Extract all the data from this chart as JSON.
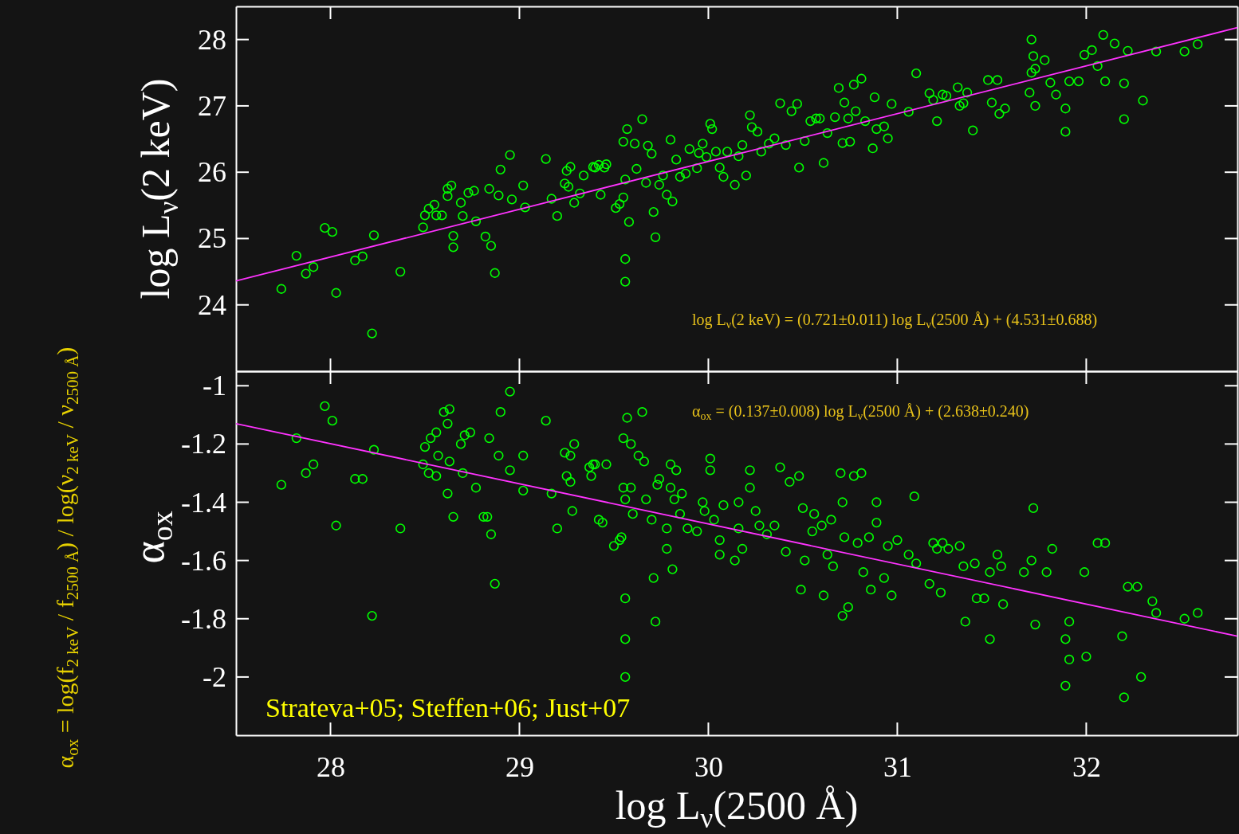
{
  "chart_data": [
    {
      "type": "scatter",
      "ylabel": "log L$_{ν}$(2 keV)",
      "xlim": [
        27.5,
        32.8
      ],
      "ylim": [
        23,
        28.5
      ],
      "xticks": [
        28,
        29,
        30,
        31,
        32
      ],
      "yticks": [
        24,
        25,
        26,
        27,
        28
      ],
      "tick_labels": "y",
      "marker": "circle",
      "grid": false,
      "annotations": [
        "log L$_{ν}$(2 keV) = (0.721±0.011) log L$_{ν}$(2500 Å) + (4.531±0.688)"
      ],
      "series": [
        {
          "type": "scatter",
          "color": "#00ff00",
          "x": [
            27.74,
            27.82,
            27.87,
            27.91,
            27.97,
            28.01,
            28.03,
            28.13,
            28.17,
            28.22,
            28.23,
            28.37,
            28.49,
            28.5,
            28.52,
            28.55,
            28.56,
            28.59,
            28.62,
            28.62,
            28.64,
            28.65,
            28.65,
            28.69,
            28.7,
            28.73,
            28.76,
            28.77,
            28.82,
            28.84,
            28.85,
            28.87,
            28.89,
            28.9,
            28.95,
            28.96,
            29.02,
            29.03,
            29.14,
            29.17,
            29.2,
            29.24,
            29.25,
            29.26,
            29.27,
            29.29,
            29.32,
            29.34,
            29.39,
            29.4,
            29.42,
            29.43,
            29.45,
            29.46,
            29.51,
            29.53,
            29.55,
            29.56,
            29.56,
            29.56,
            29.58,
            29.57,
            29.55,
            29.61,
            29.62,
            29.65,
            29.67,
            29.68,
            29.7,
            29.71,
            29.72,
            29.74,
            29.76,
            29.78,
            29.8,
            29.81,
            29.83,
            29.85,
            29.88,
            29.9,
            29.94,
            29.95,
            29.97,
            29.99,
            30.01,
            30.02,
            30.04,
            30.06,
            30.08,
            30.1,
            30.14,
            30.16,
            30.18,
            30.2,
            30.22,
            30.23,
            30.26,
            30.28,
            30.32,
            30.35,
            30.38,
            30.41,
            30.44,
            30.47,
            30.48,
            30.51,
            30.54,
            30.57,
            30.59,
            30.61,
            30.63,
            30.67,
            30.69,
            30.71,
            30.72,
            30.74,
            30.75,
            30.77,
            30.78,
            30.81,
            30.83,
            30.87,
            30.88,
            30.89,
            30.93,
            30.95,
            30.97,
            31.1,
            31.06,
            31.17,
            31.19,
            31.21,
            31.24,
            31.26,
            31.32,
            31.33,
            31.35,
            31.37,
            31.4,
            31.48,
            31.53,
            31.5,
            31.54,
            31.57,
            31.7,
            31.71,
            31.72,
            31.73,
            31.73,
            31.78,
            31.81,
            31.84,
            31.89,
            31.91,
            31.96,
            31.89,
            31.99,
            32.03,
            32.06,
            32.1,
            32.09,
            32.15,
            32.2,
            32.2,
            32.22,
            32.3,
            32.37,
            32.52,
            32.59,
            31.71
          ],
          "values": [
            24.24,
            24.74,
            24.47,
            24.57,
            25.16,
            25.1,
            24.18,
            24.67,
            24.73,
            23.57,
            25.05,
            24.5,
            25.17,
            25.35,
            25.45,
            25.51,
            25.35,
            25.35,
            25.75,
            25.64,
            25.8,
            25.04,
            24.87,
            25.54,
            25.34,
            25.69,
            25.72,
            25.26,
            25.03,
            25.75,
            24.89,
            24.48,
            25.65,
            26.04,
            26.26,
            25.59,
            25.8,
            25.47,
            26.2,
            25.6,
            25.34,
            25.83,
            26.02,
            25.78,
            26.08,
            25.54,
            25.68,
            25.95,
            26.08,
            26.07,
            26.11,
            25.66,
            26.07,
            26.12,
            25.46,
            25.52,
            25.62,
            25.89,
            24.69,
            24.35,
            25.25,
            26.65,
            26.46,
            26.43,
            26.05,
            26.8,
            25.84,
            26.4,
            26.28,
            25.4,
            25.02,
            25.81,
            25.95,
            25.66,
            26.49,
            25.56,
            26.19,
            25.93,
            25.98,
            26.35,
            26.06,
            26.29,
            26.43,
            26.23,
            26.73,
            26.65,
            26.31,
            26.07,
            25.93,
            26.31,
            25.81,
            26.24,
            26.41,
            25.95,
            26.86,
            26.68,
            26.61,
            26.31,
            26.43,
            26.51,
            27.04,
            26.41,
            26.92,
            27.03,
            26.07,
            26.47,
            26.77,
            26.81,
            26.81,
            26.14,
            26.59,
            26.83,
            27.27,
            26.44,
            27.05,
            26.81,
            26.46,
            27.32,
            26.92,
            27.41,
            26.77,
            26.36,
            27.13,
            26.65,
            26.69,
            26.51,
            27.03,
            27.49,
            26.91,
            27.19,
            27.09,
            26.77,
            27.17,
            27.15,
            27.28,
            27.0,
            27.04,
            27.2,
            26.63,
            27.39,
            27.39,
            27.05,
            26.88,
            26.96,
            27.2,
            27.5,
            27.75,
            27.56,
            27.0,
            27.69,
            27.35,
            27.17,
            26.96,
            27.37,
            27.37,
            26.61,
            27.77,
            27.84,
            27.6,
            27.37,
            28.07,
            27.94,
            27.34,
            26.8,
            27.83,
            27.08,
            27.82,
            27.82,
            27.93,
            28.0
          ]
        },
        {
          "type": "line",
          "color": "#ff33ff",
          "marker": "none",
          "x": [
            27.5,
            32.8
          ],
          "values": [
            24.36,
            28.18
          ]
        }
      ]
    },
    {
      "type": "scatter",
      "xlabel": "log L$_{ν}$(2500 Å)",
      "ylabel": "α$_{ox}$",
      "xlim": [
        27.5,
        32.8
      ],
      "ylim": [
        -2.2,
        -0.95
      ],
      "xticks": [
        28,
        29,
        30,
        31,
        32
      ],
      "yticks": [
        -1,
        -1.2,
        -1.4,
        -1.6,
        -1.8,
        -2
      ],
      "marker": "circle",
      "grid": false,
      "annotations": [
        "α$_{ox}$ = (0.137±0.008) log L$_{ν}$(2500 Å) + (2.638±0.240)",
        "Strateva+05; Steffen+06; Just+07",
        "α$_{ox}$ = log(f$_{2 keV}$ / f$_{2500 Å}$) / log(ν$_{2 keV}$ / ν$_{2500 Å}$)"
      ],
      "series": [
        {
          "type": "scatter",
          "color": "#00ff00",
          "x": [
            27.74,
            27.82,
            27.87,
            27.91,
            27.97,
            28.01,
            28.03,
            28.13,
            28.17,
            28.22,
            28.23,
            28.37,
            28.49,
            28.5,
            28.52,
            28.53,
            28.56,
            28.56,
            28.57,
            28.6,
            28.62,
            28.63,
            28.63,
            28.62,
            28.65,
            28.69,
            28.71,
            28.74,
            28.7,
            28.77,
            28.81,
            28.83,
            28.84,
            28.85,
            28.87,
            28.89,
            28.9,
            28.95,
            28.95,
            29.02,
            29.02,
            29.14,
            29.17,
            29.2,
            29.24,
            29.25,
            29.27,
            29.27,
            29.28,
            29.29,
            29.37,
            29.38,
            29.39,
            29.4,
            29.42,
            29.44,
            29.46,
            29.5,
            29.53,
            29.54,
            29.56,
            29.56,
            29.56,
            29.55,
            29.57,
            29.55,
            29.56,
            29.59,
            29.59,
            29.6,
            29.63,
            29.65,
            29.66,
            29.67,
            29.7,
            29.71,
            29.72,
            29.73,
            29.74,
            29.78,
            29.78,
            29.8,
            29.8,
            29.81,
            29.83,
            29.82,
            29.85,
            29.86,
            29.89,
            29.94,
            29.97,
            29.98,
            30.01,
            30.01,
            30.03,
            30.06,
            30.06,
            30.08,
            30.14,
            30.16,
            30.16,
            30.18,
            30.22,
            30.22,
            30.25,
            30.27,
            30.31,
            30.35,
            30.38,
            30.41,
            30.43,
            30.48,
            30.49,
            30.5,
            30.51,
            30.55,
            30.56,
            30.6,
            30.61,
            30.63,
            30.65,
            30.66,
            30.7,
            30.71,
            30.72,
            30.71,
            30.74,
            30.77,
            30.79,
            30.81,
            30.82,
            30.85,
            30.86,
            30.89,
            30.89,
            30.95,
            30.93,
            30.97,
            31.0,
            31.09,
            31.1,
            31.06,
            31.17,
            31.19,
            31.21,
            31.23,
            31.24,
            31.27,
            31.33,
            31.35,
            31.36,
            31.41,
            31.42,
            31.46,
            31.49,
            31.49,
            31.53,
            31.55,
            31.56,
            31.72,
            31.71,
            31.73,
            31.67,
            31.79,
            31.82,
            31.89,
            31.91,
            31.91,
            31.89,
            31.99,
            32.0,
            32.06,
            32.1,
            32.19,
            32.2,
            32.22,
            32.27,
            32.29,
            32.35,
            32.37,
            32.52,
            32.59
          ],
          "values": [
            -1.34,
            -1.18,
            -1.3,
            -1.27,
            -1.07,
            -1.12,
            -1.48,
            -1.32,
            -1.32,
            -1.79,
            -1.22,
            -1.49,
            -1.27,
            -1.21,
            -1.3,
            -1.18,
            -1.31,
            -1.16,
            -1.24,
            -1.09,
            -1.13,
            -1.08,
            -1.26,
            -1.37,
            -1.45,
            -1.2,
            -1.17,
            -1.16,
            -1.3,
            -1.35,
            -1.45,
            -1.45,
            -1.18,
            -1.51,
            -1.68,
            -1.24,
            -1.09,
            -1.02,
            -1.29,
            -1.36,
            -1.24,
            -1.12,
            -1.37,
            -1.49,
            -1.23,
            -1.31,
            -1.24,
            -1.33,
            -1.43,
            -1.2,
            -1.28,
            -1.31,
            -1.27,
            -1.27,
            -1.46,
            -1.47,
            -1.27,
            -1.55,
            -1.53,
            -1.52,
            -1.73,
            -1.87,
            -2.0,
            -1.18,
            -1.11,
            -1.35,
            -1.39,
            -1.35,
            -1.2,
            -1.44,
            -1.24,
            -1.09,
            -1.26,
            -1.39,
            -1.46,
            -1.66,
            -1.81,
            -1.34,
            -1.32,
            -1.49,
            -1.56,
            -1.27,
            -1.35,
            -1.63,
            -1.29,
            -1.39,
            -1.44,
            -1.37,
            -1.49,
            -1.5,
            -1.4,
            -1.43,
            -1.25,
            -1.29,
            -1.46,
            -1.53,
            -1.58,
            -1.41,
            -1.6,
            -1.4,
            -1.49,
            -1.56,
            -1.29,
            -1.35,
            -1.43,
            -1.48,
            -1.51,
            -1.48,
            -1.28,
            -1.57,
            -1.33,
            -1.31,
            -1.7,
            -1.42,
            -1.6,
            -1.5,
            -1.44,
            -1.48,
            -1.72,
            -1.58,
            -1.46,
            -1.62,
            -1.3,
            -1.4,
            -1.52,
            -1.79,
            -1.76,
            -1.31,
            -1.54,
            -1.3,
            -1.64,
            -1.52,
            -1.7,
            -1.4,
            -1.47,
            -1.55,
            -1.66,
            -1.72,
            -1.53,
            -1.38,
            -1.61,
            -1.58,
            -1.68,
            -1.54,
            -1.56,
            -1.71,
            -1.54,
            -1.56,
            -1.55,
            -1.62,
            -1.81,
            -1.61,
            -1.73,
            -1.73,
            -1.64,
            -1.87,
            -1.58,
            -1.62,
            -1.75,
            -1.42,
            -1.6,
            -1.82,
            -1.64,
            -1.64,
            -1.56,
            -1.87,
            -1.81,
            -1.94,
            -2.03,
            -1.64,
            -1.93,
            -1.54,
            -1.54,
            -1.86,
            -2.07,
            -1.69,
            -1.69,
            -2.0,
            -1.74,
            -1.78,
            -1.8,
            -1.78
          ]
        },
        {
          "type": "line",
          "color": "#ff33ff",
          "marker": "none",
          "x": [
            27.5,
            32.8
          ],
          "values": [
            -1.13,
            -1.86
          ]
        }
      ]
    }
  ]
}
